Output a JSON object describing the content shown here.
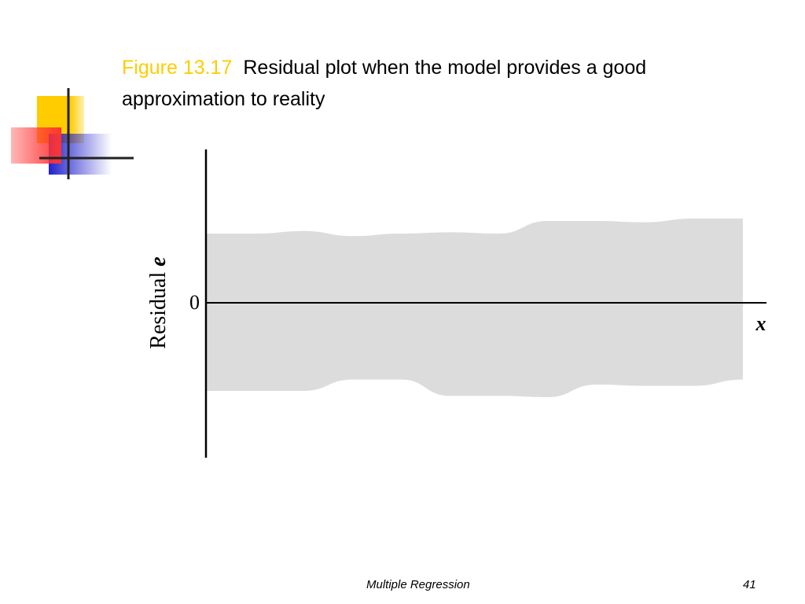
{
  "slide": {
    "figure_number": "Figure 13.17",
    "caption": "Residual plot when the model provides a good approximation to reality",
    "footer_title": "Multiple Regression",
    "page_number": "41"
  },
  "colors": {
    "figure_number": "#FFCC00",
    "band": "#DCDCDC",
    "logo_yellow": "#FFCC00",
    "logo_red": "#FF3333",
    "logo_blue": "#3333CC"
  },
  "chart_data": {
    "type": "area",
    "ylabel_text": "Residual",
    "ylabel_var": "e",
    "xlabel": "x",
    "y_ticks": [
      "0"
    ],
    "ylim": [
      -1,
      1
    ],
    "band_upper": [
      0.55,
      0.55,
      0.57,
      0.53,
      0.55,
      0.56,
      0.55,
      0.65,
      0.65,
      0.64,
      0.67,
      0.67
    ],
    "band_lower": [
      -0.7,
      -0.7,
      -0.7,
      -0.61,
      -0.61,
      -0.74,
      -0.74,
      -0.75,
      -0.65,
      -0.66,
      -0.66,
      -0.61
    ],
    "grid": false,
    "legend": "none"
  }
}
